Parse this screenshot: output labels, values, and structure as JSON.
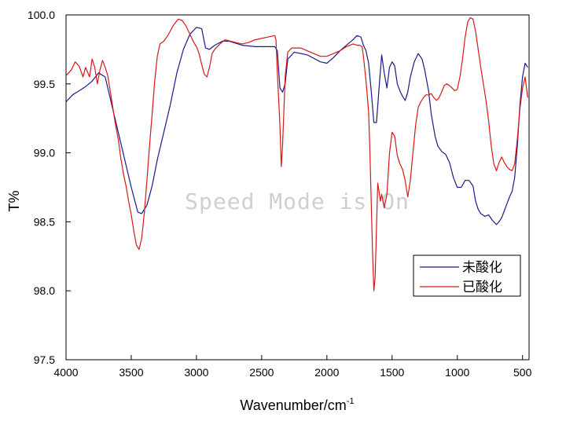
{
  "watermark": "Speed Mode is On",
  "colors": {
    "series_unoxidized": "#1a1a8c",
    "series_oxidized": "#d81818",
    "axis": "#000000",
    "watermark": "#cfcfcf"
  },
  "chart_data": {
    "type": "line",
    "title": "",
    "xlabel": "Wavenumber/cm",
    "xlabel_superscript": "-1",
    "ylabel": "T%",
    "xlim": [
      4000,
      450
    ],
    "ylim": [
      97.5,
      100.0
    ],
    "x_reversed": true,
    "x_ticks": [
      4000,
      3500,
      3000,
      2500,
      2000,
      1500,
      1000,
      500
    ],
    "x_tick_labels": [
      "4000",
      "3500",
      "3000",
      "2500",
      "2000",
      "1500",
      "1000",
      "500"
    ],
    "y_ticks": [
      97.5,
      98.0,
      98.5,
      99.0,
      99.5,
      100.0
    ],
    "y_tick_labels": [
      "97.5",
      "98.0",
      "98.5",
      "99.0",
      "99.5",
      "100.0"
    ],
    "grid": false,
    "legend": {
      "placement": "lower-right",
      "entries": [
        "未酸化",
        "已酸化"
      ]
    },
    "series": [
      {
        "name": "未酸化",
        "color": "#1a1a8c",
        "points": [
          [
            4000,
            99.37
          ],
          [
            3950,
            99.42
          ],
          [
            3900,
            99.45
          ],
          [
            3850,
            99.48
          ],
          [
            3800,
            99.52
          ],
          [
            3750,
            99.58
          ],
          [
            3700,
            99.55
          ],
          [
            3650,
            99.35
          ],
          [
            3600,
            99.15
          ],
          [
            3550,
            98.95
          ],
          [
            3500,
            98.75
          ],
          [
            3450,
            98.57
          ],
          [
            3420,
            98.56
          ],
          [
            3380,
            98.62
          ],
          [
            3340,
            98.76
          ],
          [
            3300,
            98.95
          ],
          [
            3250,
            99.15
          ],
          [
            3200,
            99.35
          ],
          [
            3150,
            99.58
          ],
          [
            3100,
            99.75
          ],
          [
            3050,
            99.86
          ],
          [
            3000,
            99.91
          ],
          [
            2960,
            99.9
          ],
          [
            2930,
            99.76
          ],
          [
            2900,
            99.75
          ],
          [
            2860,
            99.78
          ],
          [
            2800,
            99.81
          ],
          [
            2750,
            99.81
          ],
          [
            2650,
            99.78
          ],
          [
            2550,
            99.77
          ],
          [
            2400,
            99.77
          ],
          [
            2380,
            99.74
          ],
          [
            2360,
            99.47
          ],
          [
            2340,
            99.44
          ],
          [
            2320,
            99.5
          ],
          [
            2300,
            99.68
          ],
          [
            2250,
            99.73
          ],
          [
            2150,
            99.71
          ],
          [
            2050,
            99.66
          ],
          [
            2000,
            99.65
          ],
          [
            1950,
            99.69
          ],
          [
            1900,
            99.74
          ],
          [
            1850,
            99.78
          ],
          [
            1800,
            99.82
          ],
          [
            1770,
            99.85
          ],
          [
            1740,
            99.84
          ],
          [
            1720,
            99.78
          ],
          [
            1700,
            99.74
          ],
          [
            1680,
            99.65
          ],
          [
            1660,
            99.45
          ],
          [
            1640,
            99.22
          ],
          [
            1620,
            99.22
          ],
          [
            1600,
            99.47
          ],
          [
            1580,
            99.71
          ],
          [
            1560,
            99.58
          ],
          [
            1540,
            99.47
          ],
          [
            1520,
            99.62
          ],
          [
            1500,
            99.66
          ],
          [
            1480,
            99.63
          ],
          [
            1460,
            99.5
          ],
          [
            1440,
            99.45
          ],
          [
            1420,
            99.41
          ],
          [
            1400,
            99.38
          ],
          [
            1380,
            99.44
          ],
          [
            1360,
            99.55
          ],
          [
            1330,
            99.66
          ],
          [
            1300,
            99.72
          ],
          [
            1270,
            99.68
          ],
          [
            1250,
            99.6
          ],
          [
            1220,
            99.45
          ],
          [
            1200,
            99.28
          ],
          [
            1170,
            99.12
          ],
          [
            1150,
            99.05
          ],
          [
            1120,
            99.01
          ],
          [
            1090,
            98.99
          ],
          [
            1060,
            98.93
          ],
          [
            1030,
            98.82
          ],
          [
            1000,
            98.75
          ],
          [
            970,
            98.75
          ],
          [
            940,
            98.8
          ],
          [
            910,
            98.8
          ],
          [
            880,
            98.76
          ],
          [
            860,
            98.65
          ],
          [
            840,
            98.59
          ],
          [
            820,
            98.56
          ],
          [
            790,
            98.54
          ],
          [
            760,
            98.55
          ],
          [
            730,
            98.51
          ],
          [
            700,
            98.48
          ],
          [
            680,
            98.5
          ],
          [
            660,
            98.53
          ],
          [
            640,
            98.58
          ],
          [
            620,
            98.63
          ],
          [
            600,
            98.68
          ],
          [
            580,
            98.72
          ],
          [
            560,
            98.82
          ],
          [
            540,
            99.05
          ],
          [
            520,
            99.35
          ],
          [
            500,
            99.55
          ],
          [
            480,
            99.65
          ],
          [
            460,
            99.62
          ]
        ]
      },
      {
        "name": "已酸化",
        "color": "#d81818",
        "points": [
          [
            4000,
            99.56
          ],
          [
            3960,
            99.6
          ],
          [
            3930,
            99.66
          ],
          [
            3900,
            99.63
          ],
          [
            3870,
            99.55
          ],
          [
            3850,
            99.62
          ],
          [
            3820,
            99.55
          ],
          [
            3800,
            99.68
          ],
          [
            3780,
            99.62
          ],
          [
            3760,
            99.5
          ],
          [
            3740,
            99.6
          ],
          [
            3720,
            99.67
          ],
          [
            3700,
            99.62
          ],
          [
            3680,
            99.56
          ],
          [
            3650,
            99.38
          ],
          [
            3620,
            99.2
          ],
          [
            3600,
            99.1
          ],
          [
            3580,
            98.96
          ],
          [
            3560,
            98.85
          ],
          [
            3540,
            98.76
          ],
          [
            3520,
            98.65
          ],
          [
            3500,
            98.55
          ],
          [
            3480,
            98.43
          ],
          [
            3460,
            98.33
          ],
          [
            3440,
            98.3
          ],
          [
            3420,
            98.38
          ],
          [
            3400,
            98.56
          ],
          [
            3380,
            98.8
          ],
          [
            3360,
            99.05
          ],
          [
            3340,
            99.28
          ],
          [
            3320,
            99.52
          ],
          [
            3300,
            99.7
          ],
          [
            3280,
            99.79
          ],
          [
            3250,
            99.81
          ],
          [
            3220,
            99.85
          ],
          [
            3180,
            99.92
          ],
          [
            3140,
            99.97
          ],
          [
            3110,
            99.96
          ],
          [
            3080,
            99.92
          ],
          [
            3050,
            99.86
          ],
          [
            3020,
            99.8
          ],
          [
            3000,
            99.77
          ],
          [
            2980,
            99.72
          ],
          [
            2960,
            99.64
          ],
          [
            2940,
            99.57
          ],
          [
            2920,
            99.55
          ],
          [
            2900,
            99.62
          ],
          [
            2880,
            99.72
          ],
          [
            2860,
            99.75
          ],
          [
            2820,
            99.79
          ],
          [
            2780,
            99.82
          ],
          [
            2700,
            99.8
          ],
          [
            2650,
            99.79
          ],
          [
            2600,
            99.8
          ],
          [
            2550,
            99.82
          ],
          [
            2500,
            99.83
          ],
          [
            2450,
            99.84
          ],
          [
            2400,
            99.85
          ],
          [
            2390,
            99.82
          ],
          [
            2380,
            99.58
          ],
          [
            2370,
            99.4
          ],
          [
            2360,
            99.2
          ],
          [
            2350,
            98.9
          ],
          [
            2340,
            99.05
          ],
          [
            2330,
            99.3
          ],
          [
            2320,
            99.55
          ],
          [
            2300,
            99.73
          ],
          [
            2270,
            99.76
          ],
          [
            2200,
            99.76
          ],
          [
            2150,
            99.74
          ],
          [
            2100,
            99.72
          ],
          [
            2050,
            99.7
          ],
          [
            2000,
            99.7
          ],
          [
            1950,
            99.72
          ],
          [
            1900,
            99.74
          ],
          [
            1850,
            99.77
          ],
          [
            1800,
            99.79
          ],
          [
            1770,
            99.78
          ],
          [
            1750,
            99.78
          ],
          [
            1730,
            99.77
          ],
          [
            1720,
            99.7
          ],
          [
            1700,
            99.52
          ],
          [
            1680,
            99.3
          ],
          [
            1670,
            99.0
          ],
          [
            1660,
            98.65
          ],
          [
            1650,
            98.28
          ],
          [
            1640,
            98.0
          ],
          [
            1630,
            98.1
          ],
          [
            1620,
            98.45
          ],
          [
            1610,
            98.78
          ],
          [
            1600,
            98.72
          ],
          [
            1590,
            98.65
          ],
          [
            1580,
            98.7
          ],
          [
            1570,
            98.65
          ],
          [
            1560,
            98.6
          ],
          [
            1540,
            98.7
          ],
          [
            1520,
            99.0
          ],
          [
            1500,
            99.15
          ],
          [
            1480,
            99.12
          ],
          [
            1460,
            98.98
          ],
          [
            1440,
            98.92
          ],
          [
            1420,
            98.88
          ],
          [
            1400,
            98.8
          ],
          [
            1380,
            98.68
          ],
          [
            1360,
            98.8
          ],
          [
            1340,
            99.0
          ],
          [
            1320,
            99.2
          ],
          [
            1300,
            99.33
          ],
          [
            1280,
            99.37
          ],
          [
            1260,
            99.4
          ],
          [
            1240,
            99.42
          ],
          [
            1220,
            99.42
          ],
          [
            1200,
            99.43
          ],
          [
            1180,
            99.4
          ],
          [
            1160,
            99.38
          ],
          [
            1140,
            99.4
          ],
          [
            1120,
            99.44
          ],
          [
            1100,
            99.49
          ],
          [
            1080,
            99.5
          ],
          [
            1050,
            99.48
          ],
          [
            1020,
            99.45
          ],
          [
            1000,
            99.46
          ],
          [
            980,
            99.55
          ],
          [
            960,
            99.68
          ],
          [
            940,
            99.84
          ],
          [
            920,
            99.95
          ],
          [
            900,
            99.98
          ],
          [
            880,
            99.97
          ],
          [
            860,
            99.88
          ],
          [
            840,
            99.75
          ],
          [
            820,
            99.62
          ],
          [
            800,
            99.5
          ],
          [
            780,
            99.38
          ],
          [
            760,
            99.23
          ],
          [
            740,
            99.05
          ],
          [
            720,
            98.92
          ],
          [
            700,
            98.87
          ],
          [
            680,
            98.93
          ],
          [
            660,
            98.97
          ],
          [
            640,
            98.93
          ],
          [
            620,
            98.9
          ],
          [
            600,
            98.88
          ],
          [
            580,
            98.87
          ],
          [
            560,
            98.92
          ],
          [
            540,
            99.1
          ],
          [
            520,
            99.32
          ],
          [
            500,
            99.47
          ],
          [
            480,
            99.55
          ],
          [
            460,
            99.4
          ]
        ]
      }
    ]
  }
}
